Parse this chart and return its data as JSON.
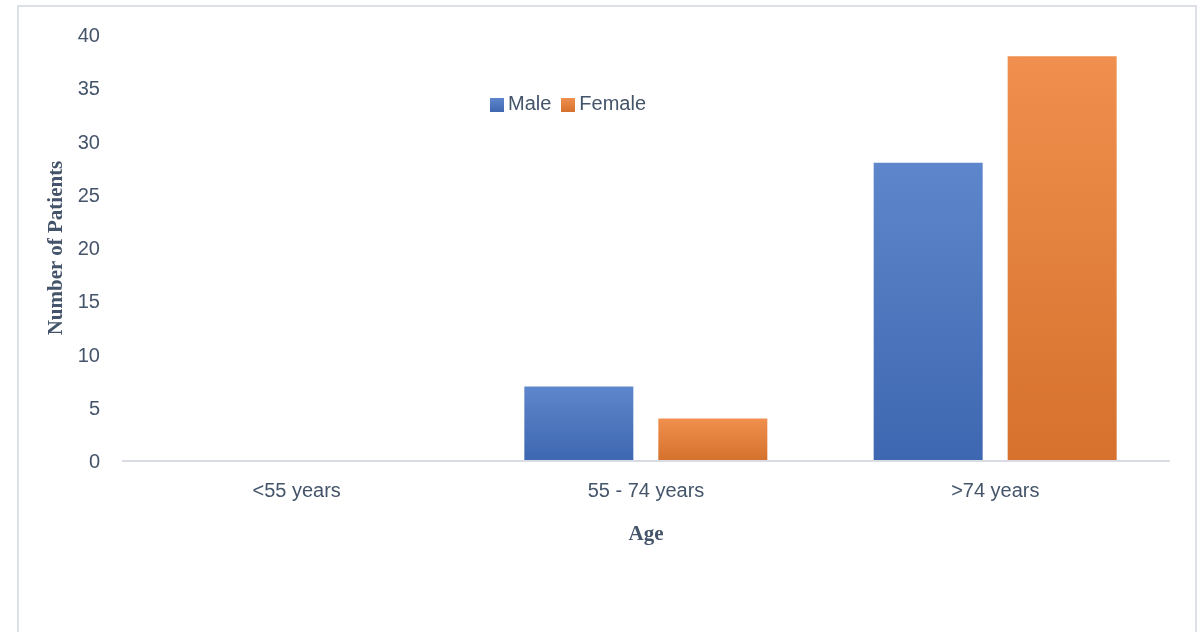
{
  "chart_data": {
    "type": "bar",
    "xlabel": "Age",
    "ylabel": "Number of Patients",
    "categories": [
      "<55 years",
      "55 - 74 years",
      ">74 years"
    ],
    "series": [
      {
        "name": "Male",
        "color": "#4472c4",
        "values": [
          0,
          7,
          28
        ]
      },
      {
        "name": "Female",
        "color": "#ed7d31",
        "values": [
          0,
          4,
          38
        ]
      }
    ],
    "ylim": [
      0,
      40
    ],
    "yticks": [
      0,
      5,
      10,
      15,
      20,
      25,
      30,
      35,
      40
    ],
    "legend": "top"
  }
}
